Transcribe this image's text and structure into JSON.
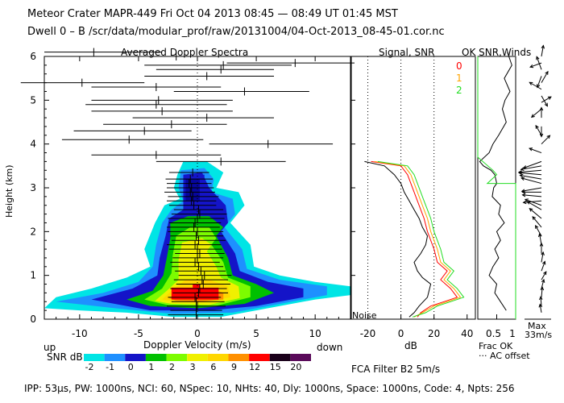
{
  "header": {
    "line1": "Meteor Crater   MAPR-449   Fri Oct 04 2013 08:45 — 08:49 UT 01:45 MST",
    "line2": "Dwell  0 –  B    /scr/data/modular_prof/raw/20131004/04-Oct-2013_08-45-01.cor.nc"
  },
  "footer": "IPP: 53µs,  PW: 1000ns,  NCI: 60,  NSpec: 10, NHts: 40,  Dly: 1000ns,  Space: 1000ns,  Code: 4,  Npts: 256",
  "filter_label": "FCA Filter B2   5m/s",
  "colors": {
    "scale": [
      "#00e5e5",
      "#1e90ff",
      "#1414c8",
      "#00c000",
      "#7cfc00",
      "#f0f000",
      "#ffd700",
      "#ff9000",
      "#ff0000",
      "#1a001a",
      "#5a0a5a"
    ],
    "snr0": "#ff0000",
    "snr1": "#ffa500",
    "snr2": "#22dd22"
  },
  "chart_data": [
    {
      "type": "heatmap",
      "title": "Averaged Doppler Spectra",
      "xlabel": "Doppler Velocity (m/s)",
      "ylabel": "Height (km)",
      "xlim": [
        -13,
        13
      ],
      "ylim": [
        0,
        6
      ],
      "x_ticks": [
        -10,
        -5,
        0,
        5,
        10
      ],
      "y_ticks": [
        0,
        1,
        2,
        3,
        4,
        5,
        6
      ],
      "label_up": "up",
      "label_down": "down",
      "colorbar_label": "SNR dB",
      "colorbar_ticks": [
        "-2",
        "-1",
        "0",
        "1",
        "2",
        "3",
        "6",
        "9",
        "12",
        "15",
        "20"
      ],
      "noise_label": "Noise",
      "spread_bars": [
        {
          "h": 0.1,
          "c": -0.1,
          "lo": -2.5,
          "hi": 2.2
        },
        {
          "h": 0.2,
          "c": -0.1,
          "lo": -2.3,
          "hi": 2.1
        },
        {
          "h": 0.3,
          "c": 0.0,
          "lo": -2.6,
          "hi": 2.4
        },
        {
          "h": 0.4,
          "c": -0.1,
          "lo": -2.2,
          "hi": 2.3
        },
        {
          "h": 0.5,
          "c": -0.2,
          "lo": -2.5,
          "hi": 2.0
        },
        {
          "h": 0.6,
          "c": 0.1,
          "lo": -2.1,
          "hi": 2.6
        },
        {
          "h": 0.7,
          "c": 0.2,
          "lo": -2.3,
          "hi": 2.5
        },
        {
          "h": 0.8,
          "c": 0.5,
          "lo": -1.8,
          "hi": 2.8
        },
        {
          "h": 0.9,
          "c": 0.4,
          "lo": -2.0,
          "hi": 2.6
        },
        {
          "h": 1.0,
          "c": 0.6,
          "lo": -1.6,
          "hi": 2.9
        },
        {
          "h": 1.1,
          "c": 0.3,
          "lo": -1.9,
          "hi": 2.4
        },
        {
          "h": 1.2,
          "c": 0.1,
          "lo": -2.2,
          "hi": 2.2
        },
        {
          "h": 1.3,
          "c": -0.2,
          "lo": -2.3,
          "hi": 1.9
        },
        {
          "h": 1.4,
          "c": 0.0,
          "lo": -2.1,
          "hi": 2.2
        },
        {
          "h": 1.5,
          "c": 0.2,
          "lo": -1.9,
          "hi": 2.3
        },
        {
          "h": 1.6,
          "c": 0.0,
          "lo": -2.4,
          "hi": 2.1
        },
        {
          "h": 1.7,
          "c": -0.2,
          "lo": -2.6,
          "hi": 2.0
        },
        {
          "h": 1.8,
          "c": 0.1,
          "lo": -2.2,
          "hi": 2.4
        },
        {
          "h": 1.9,
          "c": -0.1,
          "lo": -2.3,
          "hi": 2.2
        },
        {
          "h": 2.0,
          "c": 0.0,
          "lo": -2.5,
          "hi": 2.2
        },
        {
          "h": 2.1,
          "c": -0.3,
          "lo": -2.6,
          "hi": 1.9
        },
        {
          "h": 2.2,
          "c": -0.2,
          "lo": -2.4,
          "hi": 2.0
        },
        {
          "h": 2.3,
          "c": 0.0,
          "lo": -2.5,
          "hi": 2.3
        },
        {
          "h": 2.4,
          "c": 0.2,
          "lo": -2.2,
          "hi": 2.5
        },
        {
          "h": 2.5,
          "c": 0.1,
          "lo": -2.0,
          "hi": 2.2
        },
        {
          "h": 2.6,
          "c": -0.3,
          "lo": -2.4,
          "hi": 1.6
        },
        {
          "h": 2.7,
          "c": -0.5,
          "lo": -2.6,
          "hi": 1.6
        },
        {
          "h": 2.8,
          "c": -0.4,
          "lo": -2.5,
          "hi": 1.8
        },
        {
          "h": 2.9,
          "c": -0.6,
          "lo": -2.8,
          "hi": 1.5
        },
        {
          "h": 3.0,
          "c": -0.5,
          "lo": -2.6,
          "hi": 1.4
        },
        {
          "h": 3.1,
          "c": -0.7,
          "lo": -2.6,
          "hi": 1.2
        },
        {
          "h": 3.2,
          "c": -0.6,
          "lo": -2.7,
          "hi": 1.3
        },
        {
          "h": 3.35,
          "c": -0.4,
          "lo": -2.4,
          "hi": 1.0
        },
        {
          "h": 3.6,
          "c": 2.0,
          "lo": -3.5,
          "hi": 7.5
        },
        {
          "h": 3.75,
          "c": -3.5,
          "lo": -9.0,
          "hi": 2.0
        },
        {
          "h": 4.0,
          "c": 6.0,
          "lo": 1.0,
          "hi": 11.5
        },
        {
          "h": 4.1,
          "c": -5.8,
          "lo": -11.5,
          "hi": 0.5
        },
        {
          "h": 4.3,
          "c": -4.5,
          "lo": -10.5,
          "hi": -0.5
        },
        {
          "h": 4.45,
          "c": -2.2,
          "lo": -8.0,
          "hi": 2.5
        },
        {
          "h": 4.6,
          "c": 0.8,
          "lo": -5.5,
          "hi": 6.5
        },
        {
          "h": 4.75,
          "c": -3.0,
          "lo": -9.0,
          "hi": 3.0
        },
        {
          "h": 4.9,
          "c": -3.5,
          "lo": -9.5,
          "hi": 2.5
        },
        {
          "h": 5.0,
          "c": -3.3,
          "lo": -9.0,
          "hi": 3.0
        },
        {
          "h": 5.2,
          "c": 4.0,
          "lo": -2.0,
          "hi": 9.5
        },
        {
          "h": 5.3,
          "c": -3.5,
          "lo": -9.0,
          "hi": 2.0
        },
        {
          "h": 5.4,
          "c": -9.8,
          "lo": -15.0,
          "hi": -4.5
        },
        {
          "h": 5.55,
          "c": 0.8,
          "lo": -4.5,
          "hi": 6.5
        },
        {
          "h": 5.7,
          "c": 2.0,
          "lo": -3.5,
          "hi": 6.5
        },
        {
          "h": 5.8,
          "c": 2.2,
          "lo": -4.5,
          "hi": 8.0
        },
        {
          "h": 5.85,
          "c": 8.3,
          "lo": 2.5,
          "hi": 14.0
        },
        {
          "h": 6.0,
          "c": -1.8,
          "lo": -7.5,
          "hi": 5.0
        },
        {
          "h": 6.1,
          "c": -8.8,
          "lo": -13.0,
          "hi": -3.0
        }
      ]
    },
    {
      "type": "line",
      "title": "Signal, SNR",
      "xlabel": "dB",
      "xlim": [
        -30,
        45
      ],
      "ylim": [
        0,
        6
      ],
      "x_ticks": [
        -20,
        0,
        20,
        40
      ],
      "legend": [
        "0",
        "1",
        "2"
      ],
      "series": [
        {
          "name": "signal",
          "points": [
            [
              5,
              0.05
            ],
            [
              8,
              0.15
            ],
            [
              11,
              0.3
            ],
            [
              16,
              0.5
            ],
            [
              18,
              0.8
            ],
            [
              13,
              0.95
            ],
            [
              10,
              1.1
            ],
            [
              8,
              1.3
            ],
            [
              12,
              1.5
            ],
            [
              15,
              1.7
            ],
            [
              16,
              1.9
            ],
            [
              13,
              2.1
            ],
            [
              11,
              2.3
            ],
            [
              8,
              2.5
            ],
            [
              5,
              2.7
            ],
            [
              2,
              2.9
            ],
            [
              0,
              3.1
            ],
            [
              -4,
              3.3
            ],
            [
              -10,
              3.5
            ],
            [
              -22,
              3.6
            ]
          ]
        },
        {
          "name": "0",
          "points": [
            [
              10,
              0.05
            ],
            [
              12,
              0.15
            ],
            [
              18,
              0.3
            ],
            [
              26,
              0.4
            ],
            [
              34,
              0.5
            ],
            [
              30,
              0.7
            ],
            [
              24,
              0.9
            ],
            [
              28,
              1.1
            ],
            [
              22,
              1.3
            ],
            [
              20,
              1.6
            ],
            [
              16,
              2.0
            ],
            [
              14,
              2.3
            ],
            [
              12,
              2.5
            ],
            [
              10,
              2.7
            ],
            [
              8,
              2.9
            ],
            [
              6,
              3.1
            ],
            [
              4,
              3.3
            ],
            [
              0,
              3.5
            ],
            [
              -18,
              3.6
            ]
          ]
        },
        {
          "name": "1",
          "points": [
            [
              8,
              0.05
            ],
            [
              13,
              0.15
            ],
            [
              20,
              0.3
            ],
            [
              28,
              0.4
            ],
            [
              36,
              0.5
            ],
            [
              32,
              0.7
            ],
            [
              26,
              0.9
            ],
            [
              30,
              1.1
            ],
            [
              24,
              1.3
            ],
            [
              22,
              1.6
            ],
            [
              18,
              2.0
            ],
            [
              16,
              2.3
            ],
            [
              14,
              2.5
            ],
            [
              12,
              2.7
            ],
            [
              10,
              2.9
            ],
            [
              8,
              3.1
            ],
            [
              6,
              3.3
            ],
            [
              2,
              3.5
            ],
            [
              -16,
              3.6
            ]
          ]
        },
        {
          "name": "2",
          "points": [
            [
              7,
              0.05
            ],
            [
              15,
              0.15
            ],
            [
              22,
              0.3
            ],
            [
              30,
              0.4
            ],
            [
              38,
              0.5
            ],
            [
              34,
              0.7
            ],
            [
              28,
              0.9
            ],
            [
              32,
              1.1
            ],
            [
              26,
              1.3
            ],
            [
              24,
              1.6
            ],
            [
              20,
              2.0
            ],
            [
              18,
              2.3
            ],
            [
              16,
              2.5
            ],
            [
              14,
              2.7
            ],
            [
              12,
              2.9
            ],
            [
              10,
              3.1
            ],
            [
              8,
              3.3
            ],
            [
              4,
              3.5
            ],
            [
              -14,
              3.6
            ]
          ]
        }
      ]
    },
    {
      "type": "line",
      "title": "OK SNR,Winds",
      "xlabel": "Frac OK",
      "xlabel2": "··· AC offset",
      "xlim": [
        0,
        1
      ],
      "x_ticks": [
        "0.5",
        "1"
      ],
      "ylim": [
        0,
        6
      ],
      "series": [
        {
          "name": "frac_ok",
          "points": [
            [
              0.78,
              6.1
            ],
            [
              0.9,
              5.8
            ],
            [
              0.7,
              5.5
            ],
            [
              0.85,
              5.2
            ],
            [
              0.72,
              5.0
            ],
            [
              0.65,
              4.8
            ],
            [
              0.75,
              4.5
            ],
            [
              0.55,
              4.2
            ],
            [
              0.4,
              4.0
            ],
            [
              0.3,
              3.8
            ],
            [
              0.05,
              3.6
            ],
            [
              0.15,
              3.5
            ],
            [
              0.35,
              3.4
            ],
            [
              0.45,
              3.3
            ],
            [
              0.5,
              3.1
            ],
            [
              0.42,
              3.0
            ],
            [
              0.38,
              2.8
            ],
            [
              0.6,
              2.6
            ],
            [
              0.55,
              2.4
            ],
            [
              0.7,
              2.2
            ],
            [
              0.5,
              2.0
            ],
            [
              0.6,
              1.8
            ],
            [
              0.45,
              1.6
            ],
            [
              0.55,
              1.4
            ],
            [
              0.4,
              1.2
            ],
            [
              0.3,
              1.0
            ],
            [
              0.5,
              0.8
            ],
            [
              0.45,
              0.6
            ],
            [
              0.6,
              0.4
            ],
            [
              0.75,
              0.2
            ]
          ]
        },
        {
          "name": "ok_snr",
          "points": [
            [
              0.0,
              6.0
            ],
            [
              0.0,
              3.7
            ],
            [
              0.4,
              3.4
            ],
            [
              0.5,
              3.3
            ],
            [
              0.25,
              3.1
            ],
            [
              1.0,
              3.1
            ],
            [
              1.0,
              0.0
            ]
          ]
        }
      ]
    },
    {
      "type": "scatter",
      "title": "Winds",
      "scale_label": "Max",
      "scale_value": "33m/s",
      "ylim": [
        0,
        6
      ],
      "barbs": [
        {
          "h": 6.0,
          "angle": 80,
          "len": 0.35
        },
        {
          "h": 5.85,
          "angle": 200,
          "len": 0.4
        },
        {
          "h": 5.7,
          "angle": 110,
          "len": 0.5
        },
        {
          "h": 5.55,
          "angle": 250,
          "len": 0.4
        },
        {
          "h": 5.4,
          "angle": 60,
          "len": 0.45
        },
        {
          "h": 5.25,
          "angle": 150,
          "len": 0.5
        },
        {
          "h": 5.1,
          "angle": 300,
          "len": 0.4
        },
        {
          "h": 4.95,
          "angle": 30,
          "len": 0.35
        },
        {
          "h": 4.8,
          "angle": 220,
          "len": 0.45
        },
        {
          "h": 4.6,
          "angle": 90,
          "len": 0.3
        },
        {
          "h": 4.4,
          "angle": 270,
          "len": 0.3
        },
        {
          "h": 4.2,
          "angle": 120,
          "len": 0.35
        },
        {
          "h": 4.0,
          "angle": 45,
          "len": 0.4
        },
        {
          "h": 3.8,
          "angle": 160,
          "len": 0.45
        },
        {
          "h": 3.6,
          "angle": 200,
          "len": 0.8
        },
        {
          "h": 3.5,
          "angle": 190,
          "len": 0.9
        },
        {
          "h": 3.4,
          "angle": 185,
          "len": 1.0
        },
        {
          "h": 3.3,
          "angle": 175,
          "len": 1.0
        },
        {
          "h": 3.2,
          "angle": 170,
          "len": 0.95
        },
        {
          "h": 3.1,
          "angle": 165,
          "len": 0.9
        },
        {
          "h": 3.0,
          "angle": 190,
          "len": 0.85
        },
        {
          "h": 2.9,
          "angle": 180,
          "len": 0.8
        },
        {
          "h": 2.8,
          "angle": 175,
          "len": 0.8
        },
        {
          "h": 2.7,
          "angle": 185,
          "len": 0.75
        },
        {
          "h": 2.6,
          "angle": 160,
          "len": 0.7
        },
        {
          "h": 2.5,
          "angle": 150,
          "len": 0.65
        },
        {
          "h": 2.3,
          "angle": 140,
          "len": 0.6
        },
        {
          "h": 2.1,
          "angle": 130,
          "len": 0.5
        },
        {
          "h": 1.9,
          "angle": 120,
          "len": 0.4
        },
        {
          "h": 1.7,
          "angle": 100,
          "len": 0.35
        },
        {
          "h": 1.5,
          "angle": 90,
          "len": 0.3
        },
        {
          "h": 1.3,
          "angle": 80,
          "len": 0.3
        },
        {
          "h": 1.1,
          "angle": 70,
          "len": 0.3
        },
        {
          "h": 0.9,
          "angle": 60,
          "len": 0.25
        },
        {
          "h": 0.7,
          "angle": 75,
          "len": 0.25
        },
        {
          "h": 0.5,
          "angle": 85,
          "len": 0.3
        },
        {
          "h": 0.3,
          "angle": 95,
          "len": 0.25
        },
        {
          "h": 0.15,
          "angle": 100,
          "len": 0.2
        }
      ]
    }
  ]
}
